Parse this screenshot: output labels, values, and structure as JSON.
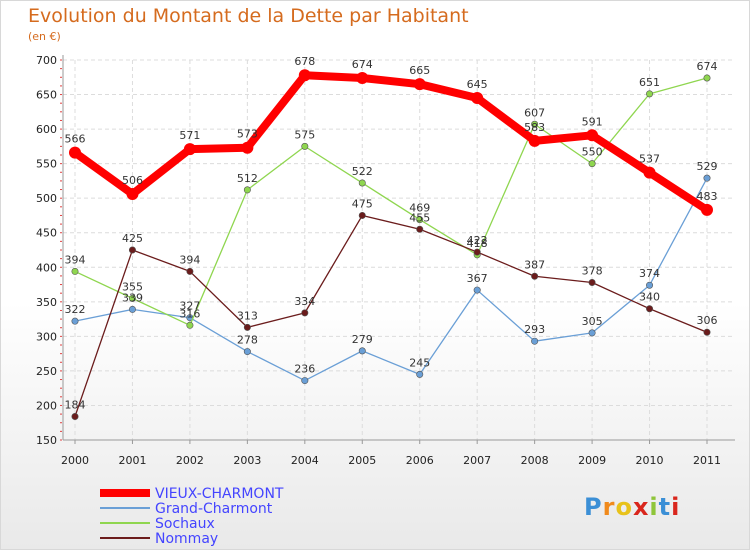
{
  "title": "Evolution du Montant de la Dette par Habitant",
  "subtitle": "(en €)",
  "logo": "Proxiti",
  "chart_data": {
    "type": "line",
    "x": [
      "2000",
      "2001",
      "2002",
      "2003",
      "2004",
      "2005",
      "2006",
      "2007",
      "2008",
      "2009",
      "2010",
      "2011"
    ],
    "ylim": [
      150,
      700
    ],
    "yticks": [
      150,
      200,
      250,
      300,
      350,
      400,
      450,
      500,
      550,
      600,
      650,
      700
    ],
    "grid": true,
    "legend_position": "bottom-left",
    "series": [
      {
        "name": "VIEUX-CHARMONT",
        "color": "#ff0000",
        "values": [
          566,
          506,
          571,
          573,
          678,
          674,
          665,
          645,
          583,
          591,
          537,
          483
        ]
      },
      {
        "name": "Grand-Charmont",
        "color": "#6a9fd6",
        "values": [
          322,
          339,
          327,
          278,
          236,
          279,
          245,
          367,
          293,
          305,
          374,
          529
        ]
      },
      {
        "name": "Sochaux",
        "color": "#8fd64f",
        "values": [
          394,
          355,
          316,
          512,
          575,
          522,
          469,
          418,
          607,
          550,
          651,
          674
        ]
      },
      {
        "name": "Nommay",
        "color": "#6b1c1c",
        "values": [
          184,
          425,
          394,
          313,
          334,
          475,
          455,
          422,
          387,
          378,
          340,
          306
        ]
      }
    ]
  }
}
